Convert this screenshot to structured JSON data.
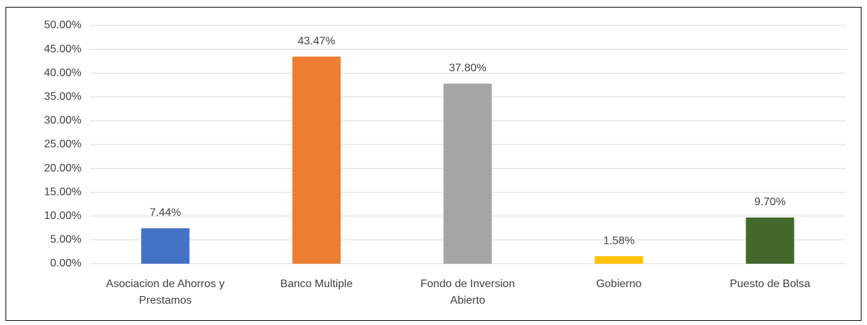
{
  "chart_data": {
    "type": "bar",
    "categories": [
      "Asociacion de Ahorros y Prestamos",
      "Banco Multiple",
      "Fondo de Inversion Abierto",
      "Gobierno",
      "Puesto de Bolsa"
    ],
    "values": [
      7.44,
      43.47,
      37.8,
      1.58,
      9.7
    ],
    "value_labels": [
      "7.44%",
      "43.47%",
      "37.80%",
      "1.58%",
      "9.70%"
    ],
    "colors": [
      "#4472c4",
      "#ed7d31",
      "#a5a5a5",
      "#ffc000",
      "#43682b"
    ],
    "ylim": [
      0,
      50
    ],
    "yticks": [
      {
        "value": 0,
        "label": "0.00%"
      },
      {
        "value": 5,
        "label": "5.00%"
      },
      {
        "value": 10,
        "label": "10.00%"
      },
      {
        "value": 15,
        "label": "15.00%"
      },
      {
        "value": 20,
        "label": "20.00%"
      },
      {
        "value": 25,
        "label": "25.00%"
      },
      {
        "value": 30,
        "label": "30.00%"
      },
      {
        "value": 35,
        "label": "35.00%"
      },
      {
        "value": 40,
        "label": "40.00%"
      },
      {
        "value": 45,
        "label": "45.00%"
      },
      {
        "value": 50,
        "label": "50.00%"
      }
    ],
    "grid": true
  }
}
